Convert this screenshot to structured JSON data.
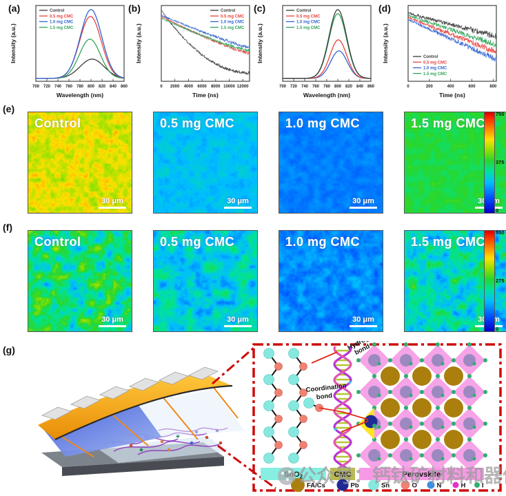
{
  "panels": {
    "a": "(a)",
    "b": "(b)",
    "c": "(c)",
    "d": "(d)",
    "e": "(e)",
    "f": "(f)",
    "g": "(g)"
  },
  "chart_data": [
    {
      "id": "a",
      "type": "line",
      "panel": "(a)",
      "curve": "gaussian",
      "xlabel": "Wavelength (nm)",
      "ylabel": "Intensity (a.u.)",
      "xlim": [
        700,
        860
      ],
      "xticks": [
        700,
        720,
        740,
        760,
        780,
        800,
        820,
        840,
        860
      ],
      "legend_pos": "tl",
      "grid": false,
      "series": [
        {
          "name": "Control",
          "color": "#3a3a3a",
          "peak_nm": 802,
          "peak_height": 0.28,
          "sigma_nm": 22
        },
        {
          "name": "0.5 mg CMC",
          "color": "#e8413c",
          "peak_nm": 799,
          "peak_height": 0.9,
          "sigma_nm": 19.5
        },
        {
          "name": "1.0 mg CMC",
          "color": "#2f63d2",
          "peak_nm": 800,
          "peak_height": 1.0,
          "sigma_nm": 19.5
        },
        {
          "name": "1.5 mg CMC",
          "color": "#2fa558",
          "peak_nm": 798,
          "peak_height": 0.57,
          "sigma_nm": 19
        }
      ]
    },
    {
      "id": "b",
      "type": "line",
      "panel": "(b)",
      "curve": "decay",
      "xlabel": "Time (ns)",
      "ylabel": "Intensity (a.u.)",
      "xlim": [
        0,
        13000
      ],
      "xticks": [
        0,
        2000,
        4000,
        6000,
        8000,
        10000,
        12000
      ],
      "legend_pos": "tr",
      "noise": 0.03,
      "grid": false,
      "series": [
        {
          "name": "Control",
          "color": "#3a3a3a",
          "start": 0.97,
          "end": 0.08,
          "shape": 2.0
        },
        {
          "name": "0.5 mg CMC",
          "color": "#e8413c",
          "start": 0.88,
          "end": 0.36,
          "shape": 1.2
        },
        {
          "name": "1.0 mg CMC",
          "color": "#2f63d2",
          "start": 0.9,
          "end": 0.44,
          "shape": 1.15
        },
        {
          "name": "1.5 mg CMC",
          "color": "#2fa558",
          "start": 0.86,
          "end": 0.4,
          "shape": 1.25
        }
      ]
    },
    {
      "id": "c",
      "type": "line",
      "panel": "(c)",
      "curve": "gaussian",
      "xlabel": "Wavelength (nm)",
      "ylabel": "Intensity (a.u.)",
      "xlim": [
        700,
        860
      ],
      "xticks": [
        700,
        720,
        740,
        760,
        780,
        800,
        820,
        840,
        860
      ],
      "legend_pos": "tl",
      "grid": false,
      "series": [
        {
          "name": "Control",
          "color": "#3a3a3a",
          "peak_nm": 800,
          "peak_height": 1.0,
          "sigma_nm": 16
        },
        {
          "name": "0.5 mg CMC",
          "color": "#e8413c",
          "peak_nm": 801,
          "peak_height": 0.56,
          "sigma_nm": 15
        },
        {
          "name": "1.0 mg CMC",
          "color": "#2f63d2",
          "peak_nm": 802,
          "peak_height": 0.4,
          "sigma_nm": 15
        },
        {
          "name": "1.5 mg CMC",
          "color": "#2fa558",
          "peak_nm": 800,
          "peak_height": 0.94,
          "sigma_nm": 16
        }
      ]
    },
    {
      "id": "d",
      "type": "line",
      "panel": "(d)",
      "curve": "decay",
      "xlabel": "Time (ns)",
      "ylabel": "Intensity (a.u.)",
      "xlim": [
        0,
        830
      ],
      "xticks": [
        0,
        200,
        400,
        600,
        800
      ],
      "legend_pos": "bl",
      "noise": 0.055,
      "grid": false,
      "series": [
        {
          "name": "Control",
          "color": "#3a3a3a",
          "start": 0.93,
          "end": 0.6,
          "shape": 1.0
        },
        {
          "name": "0.5 mg CMC",
          "color": "#e8413c",
          "start": 0.87,
          "end": 0.38,
          "shape": 1.0
        },
        {
          "name": "1.0 mg CMC",
          "color": "#2f63d2",
          "start": 0.84,
          "end": 0.27,
          "shape": 1.0
        },
        {
          "name": "1.5 mg CMC",
          "color": "#2fa558",
          "start": 0.9,
          "end": 0.48,
          "shape": 1.0
        }
      ]
    }
  ],
  "pl_maps": {
    "colormap_stops_hint": "blue-cyan-green-yellow-red (jet-like)",
    "rows": [
      {
        "id": "e",
        "label": "(e)",
        "scalebar": "30 μm",
        "colorbar_ticks": [
          "750",
          "375",
          "0"
        ],
        "images": [
          {
            "caption": "Control",
            "base": 0.7,
            "amp": 0.055,
            "blob": 7
          },
          {
            "caption": "0.5 mg CMC",
            "base": 0.31,
            "amp": 0.035,
            "blob": 9
          },
          {
            "caption": "1.0 mg CMC",
            "base": 0.21,
            "amp": 0.025,
            "blob": 9
          },
          {
            "caption": "1.5 mg CMC",
            "base": 0.5,
            "amp": 0.03,
            "blob": 8
          }
        ]
      },
      {
        "id": "f",
        "label": "(f)",
        "scalebar": "30 μm",
        "colorbar_ticks": [
          "550",
          "275",
          "0"
        ],
        "images": [
          {
            "caption": "Control",
            "base": 0.45,
            "amp": 0.13,
            "blob": 13
          },
          {
            "caption": "0.5 mg CMC",
            "base": 0.35,
            "amp": 0.09,
            "blob": 13
          },
          {
            "caption": "1.0 mg CMC",
            "base": 0.23,
            "amp": 0.05,
            "blob": 10
          },
          {
            "caption": "1.5 mg CMC",
            "base": 0.37,
            "amp": 0.11,
            "blob": 12
          }
        ]
      }
    ]
  },
  "panel_g": {
    "label": "(g)",
    "hydrogen_bond_label": [
      "Hydrogen",
      "bond"
    ],
    "coordination_bond_label": [
      "Coordination",
      "bond"
    ],
    "layer_bars": [
      {
        "text": "SnO",
        "sub": "2",
        "color": "#86efe2"
      },
      {
        "text": "CMC",
        "sub": "",
        "color": "#b9ba50"
      },
      {
        "text": "Perovskite",
        "sub": "",
        "color": "#f79ae5"
      }
    ],
    "atom_legend": [
      {
        "label": "FA/Cs",
        "color": "#ab7f0e",
        "r": 10
      },
      {
        "label": "Pb",
        "color": "#1e2a96",
        "r": 8.5
      },
      {
        "label": "Sn",
        "color": "#86e8de",
        "r": 8
      },
      {
        "label": "O",
        "color": "#ef8272",
        "r": 6.5
      },
      {
        "label": "N",
        "color": "#3f8fe0",
        "r": 5.5
      },
      {
        "label": "H",
        "color": "#e332c8",
        "r": 4.5
      },
      {
        "label": "I",
        "color": "#2fae72",
        "r": 4
      }
    ],
    "watermark": "公众号：钙钛矿材料和器件",
    "accent_red": "#cf0a0a"
  }
}
